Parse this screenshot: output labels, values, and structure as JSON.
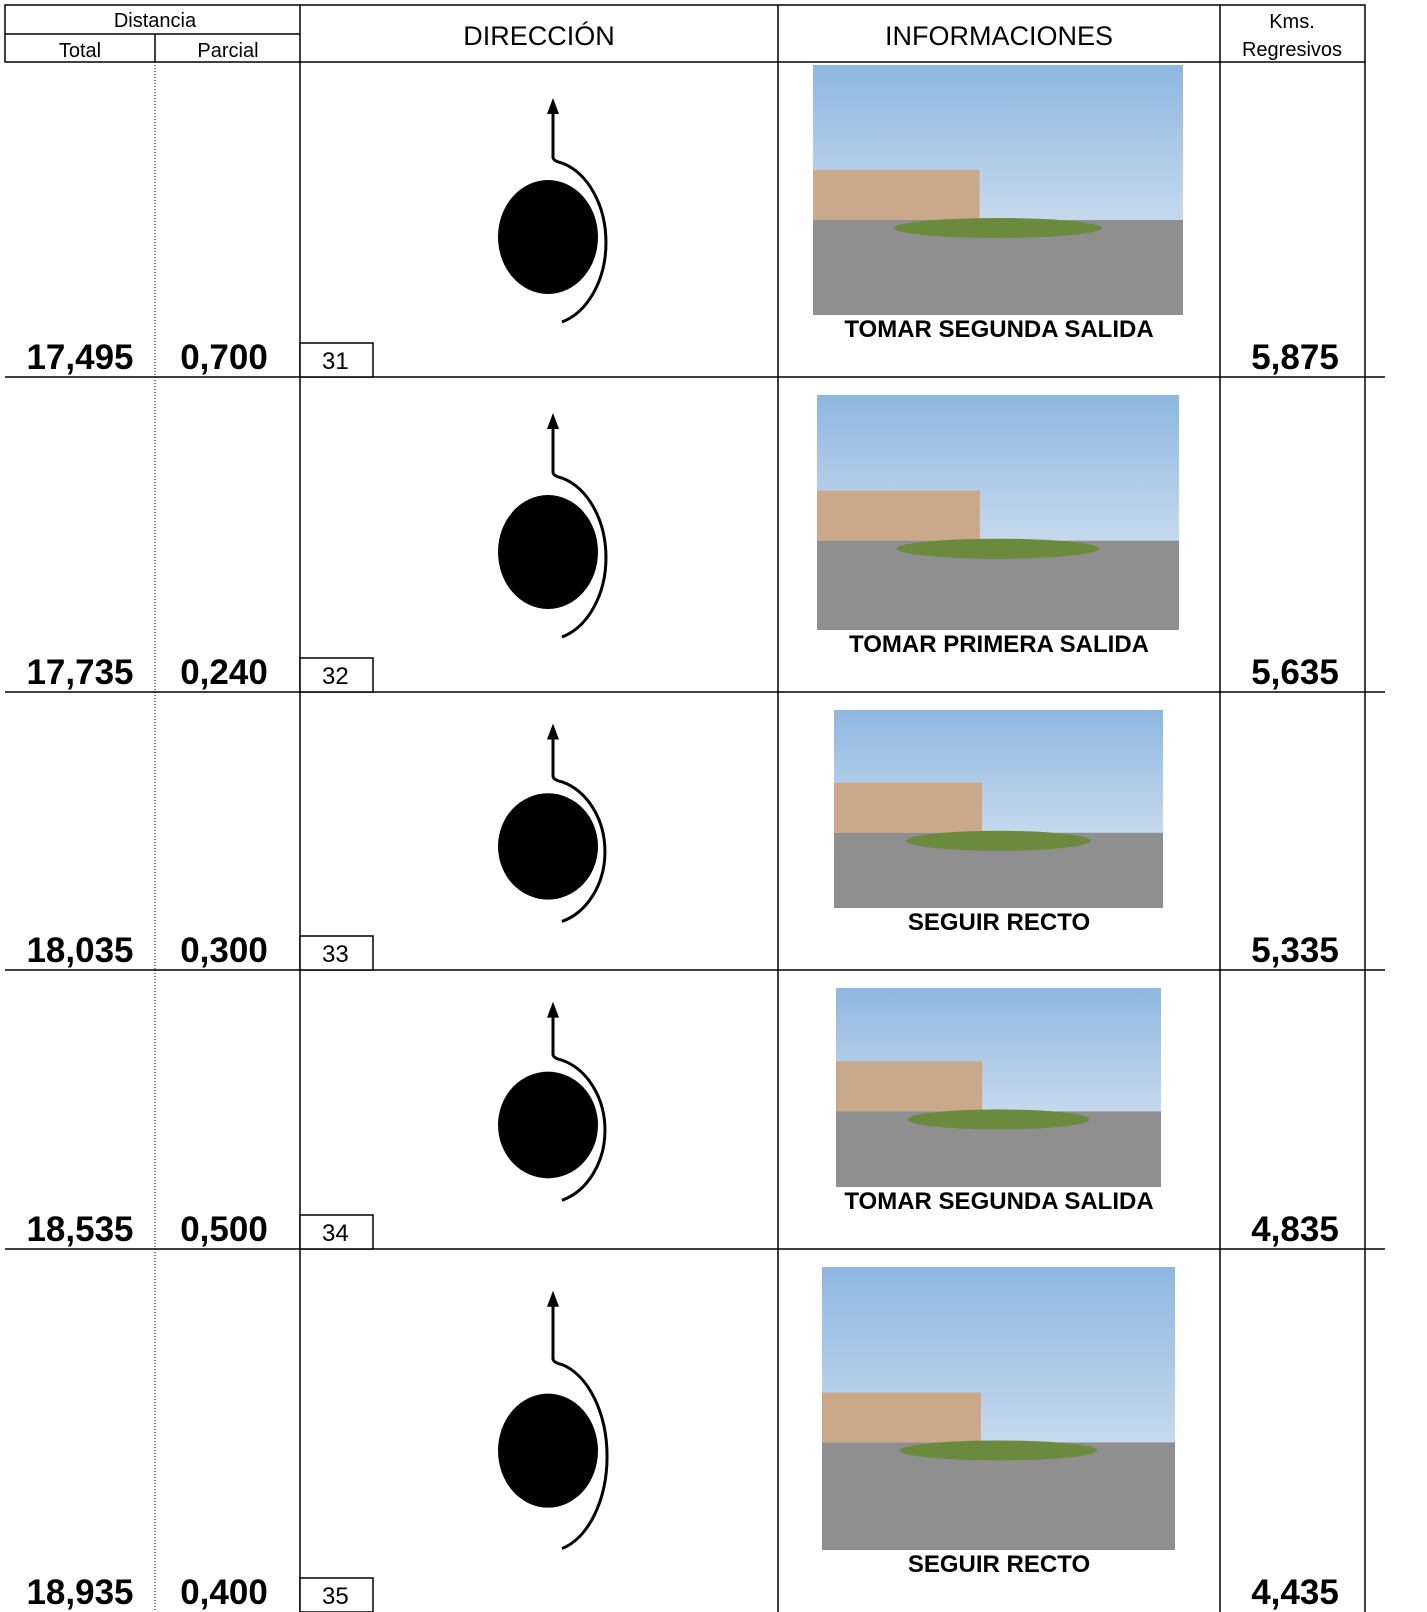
{
  "header": {
    "distance": "Distancia",
    "total": "Total",
    "partial": "Parcial",
    "direction": "DIRECCIÓN",
    "information": "INFORMACIONES",
    "kms": "Kms.",
    "regressive": "Regresivos"
  },
  "rows": [
    {
      "total": "17,495",
      "partial": "0,700",
      "number": "31",
      "instruction": "TOMAR SEGUNDA SALIDA",
      "kms": "5,875"
    },
    {
      "total": "17,735",
      "partial": "0,240",
      "number": "32",
      "instruction": "TOMAR PRIMERA SALIDA",
      "kms": "5,635"
    },
    {
      "total": "18,035",
      "partial": "0,300",
      "number": "33",
      "instruction": "SEGUIR RECTO",
      "kms": "5,335"
    },
    {
      "total": "18,535",
      "partial": "0,500",
      "number": "34",
      "instruction": "TOMAR SEGUNDA SALIDA",
      "kms": "4,835"
    },
    {
      "total": "18,935",
      "partial": "0,400",
      "number": "35",
      "instruction": "SEGUIR RECTO",
      "kms": "4,435"
    }
  ]
}
